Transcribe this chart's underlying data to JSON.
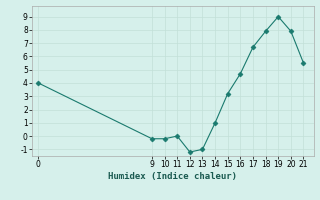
{
  "x": [
    0,
    9,
    10,
    11,
    12,
    13,
    14,
    15,
    16,
    17,
    18,
    19,
    20,
    21
  ],
  "y": [
    4,
    -0.2,
    -0.2,
    0,
    -1.2,
    -1.0,
    1.0,
    3.2,
    4.7,
    6.7,
    7.9,
    9.0,
    7.9,
    5.5
  ],
  "line_color": "#1a7a6e",
  "marker": "D",
  "xlabel": "Humidex (Indice chaleur)",
  "bg_color": "#d6f0eb",
  "grid_color": "#c2e0d8",
  "ylim": [
    -1.5,
    9.8
  ],
  "xlim": [
    -0.5,
    21.8
  ],
  "yticks": [
    -1,
    0,
    1,
    2,
    3,
    4,
    5,
    6,
    7,
    8,
    9
  ],
  "xticks": [
    0,
    9,
    10,
    11,
    12,
    13,
    14,
    15,
    16,
    17,
    18,
    19,
    20,
    21
  ],
  "axis_label_fontsize": 6.5,
  "tick_fontsize": 5.5
}
